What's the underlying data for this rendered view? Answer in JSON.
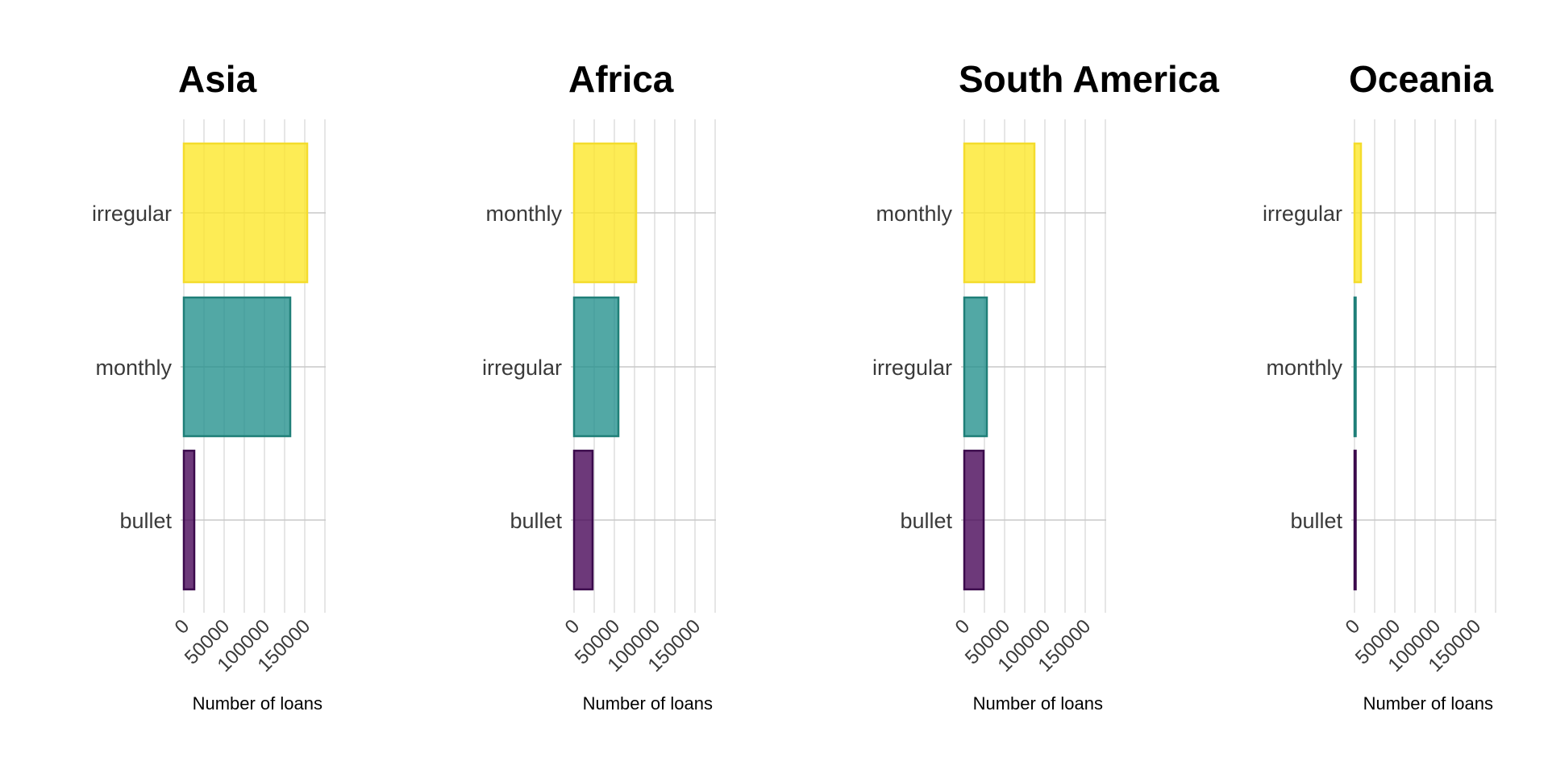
{
  "chart_data": [
    {
      "type": "bar",
      "orientation": "horizontal",
      "title": "Asia",
      "categories": [
        "bullet",
        "monthly",
        "irregular"
      ],
      "values": [
        13000,
        132000,
        153000
      ],
      "xlabel": "Number of loans",
      "ylabel": "",
      "xlim": [
        0,
        172000
      ],
      "x_ticks": [
        0,
        50000,
        100000,
        150000
      ],
      "grid": true,
      "legend": "none"
    },
    {
      "type": "bar",
      "orientation": "horizontal",
      "title": "Africa",
      "categories": [
        "bullet",
        "irregular",
        "monthly"
      ],
      "values": [
        23000,
        55000,
        77000
      ],
      "xlabel": "Number of loans",
      "ylabel": "",
      "xlim": [
        0,
        172000
      ],
      "x_ticks": [
        0,
        50000,
        100000,
        150000
      ],
      "grid": true,
      "legend": "none"
    },
    {
      "type": "bar",
      "orientation": "horizontal",
      "title": "South America",
      "categories": [
        "bullet",
        "irregular",
        "monthly"
      ],
      "values": [
        24000,
        28000,
        87000
      ],
      "xlabel": "Number of loans",
      "ylabel": "",
      "xlim": [
        0,
        172000
      ],
      "x_ticks": [
        0,
        50000,
        100000,
        150000
      ],
      "grid": true,
      "legend": "none"
    },
    {
      "type": "bar",
      "orientation": "horizontal",
      "title": "Oceania",
      "categories": [
        "bullet",
        "monthly",
        "irregular"
      ],
      "values": [
        400,
        500,
        8000
      ],
      "xlabel": "Number of loans",
      "ylabel": "",
      "xlim": [
        0,
        172000
      ],
      "x_ticks": [
        0,
        50000,
        100000,
        150000
      ],
      "grid": true,
      "legend": "none"
    }
  ],
  "colors": {
    "rank_fill": [
      "#440154",
      "#21908c",
      "#fde725"
    ],
    "rank_stroke": [
      "#3b0a4c",
      "#1f7f78",
      "#f4dc2c"
    ],
    "bar_opacity": 0.78
  }
}
